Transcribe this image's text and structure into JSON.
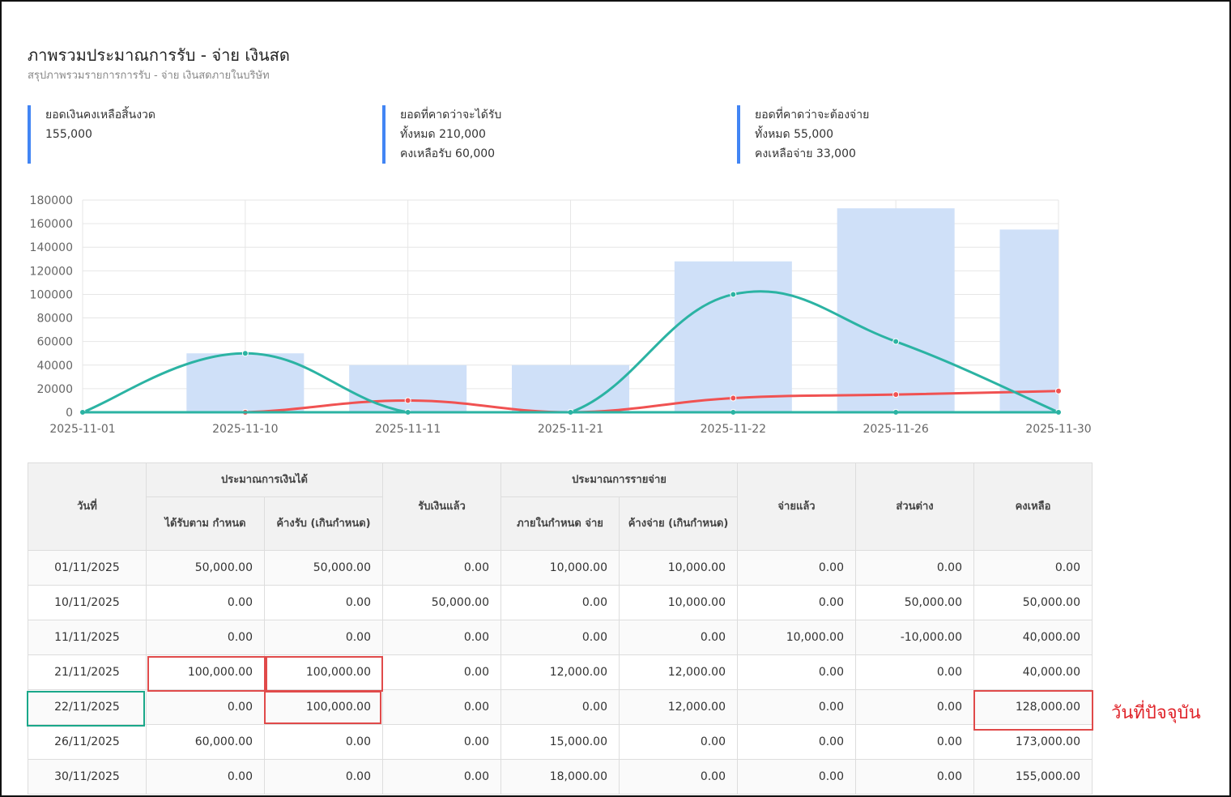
{
  "header": {
    "title": "ภาพรวมประมาณการรับ - จ่าย เงินสด",
    "subtitle": "สรุปภาพรวมรายการการรับ - จ่าย เงินสดภายในบริษัท"
  },
  "cards": [
    {
      "label": "ยอดเงินคงเหลือสิ้นงวด",
      "line1": "155,000",
      "line2": ""
    },
    {
      "label": "ยอดที่คาดว่าจะได้รับ",
      "line1": "ทั้งหมด 210,000",
      "line2": "คงเหลือรับ 60,000"
    },
    {
      "label": "ยอดที่คาดว่าจะต้องจ่าย",
      "line1": "ทั้งหมด 55,000",
      "line2": "คงเหลือจ่าย 33,000"
    }
  ],
  "chart_data": {
    "type": "bar+line",
    "categories": [
      "2025-11-01",
      "2025-11-10",
      "2025-11-11",
      "2025-11-21",
      "2025-11-22",
      "2025-11-26",
      "2025-11-30"
    ],
    "ylim": [
      0,
      180000
    ],
    "yticks": [
      0,
      20000,
      40000,
      60000,
      80000,
      100000,
      120000,
      140000,
      160000,
      180000
    ],
    "series": [
      {
        "name": "balance",
        "kind": "bar",
        "color": "#cfe0f8",
        "values": [
          0,
          50000,
          40000,
          40000,
          128000,
          173000,
          155000
        ]
      },
      {
        "name": "income",
        "kind": "line",
        "color": "#2bb3a3",
        "values": [
          0,
          50000,
          0,
          0,
          100000,
          60000,
          0
        ]
      },
      {
        "name": "expense",
        "kind": "line",
        "color": "#f05252",
        "values": [
          0,
          0,
          10000,
          0,
          12000,
          15000,
          18000
        ]
      },
      {
        "name": "paid",
        "kind": "line",
        "color": "#2bb3a3",
        "values": [
          0,
          0,
          0,
          0,
          0,
          0,
          0
        ]
      }
    ]
  },
  "table": {
    "headers": {
      "date": "วันที่",
      "income_group": "ประมาณการเงินได้",
      "income_due": "ได้รับตาม กำหนด",
      "income_overdue": "ค้างรับ (เกินกำหนด)",
      "received": "รับเงินแล้ว",
      "expense_group": "ประมาณการรายจ่าย",
      "expense_due": "ภายในกำหนด จ่าย",
      "expense_overdue": "ค้างจ่าย (เกินกำหนด)",
      "paid": "จ่ายแล้ว",
      "diff": "ส่วนต่าง",
      "balance": "คงเหลือ"
    },
    "rows": [
      [
        "01/11/2025",
        "50,000.00",
        "50,000.00",
        "0.00",
        "10,000.00",
        "10,000.00",
        "0.00",
        "0.00",
        "0.00"
      ],
      [
        "10/11/2025",
        "0.00",
        "0.00",
        "50,000.00",
        "0.00",
        "10,000.00",
        "0.00",
        "50,000.00",
        "50,000.00"
      ],
      [
        "11/11/2025",
        "0.00",
        "0.00",
        "0.00",
        "0.00",
        "0.00",
        "10,000.00",
        "-10,000.00",
        "40,000.00"
      ],
      [
        "21/11/2025",
        "100,000.00",
        "100,000.00",
        "0.00",
        "12,000.00",
        "12,000.00",
        "0.00",
        "0.00",
        "40,000.00"
      ],
      [
        "22/11/2025",
        "0.00",
        "100,000.00",
        "0.00",
        "0.00",
        "12,000.00",
        "0.00",
        "0.00",
        "128,000.00"
      ],
      [
        "26/11/2025",
        "60,000.00",
        "0.00",
        "0.00",
        "15,000.00",
        "0.00",
        "0.00",
        "0.00",
        "173,000.00"
      ],
      [
        "30/11/2025",
        "0.00",
        "0.00",
        "0.00",
        "18,000.00",
        "0.00",
        "0.00",
        "0.00",
        "155,000.00"
      ]
    ]
  },
  "annotation": "วันที่ปัจจุบัน"
}
